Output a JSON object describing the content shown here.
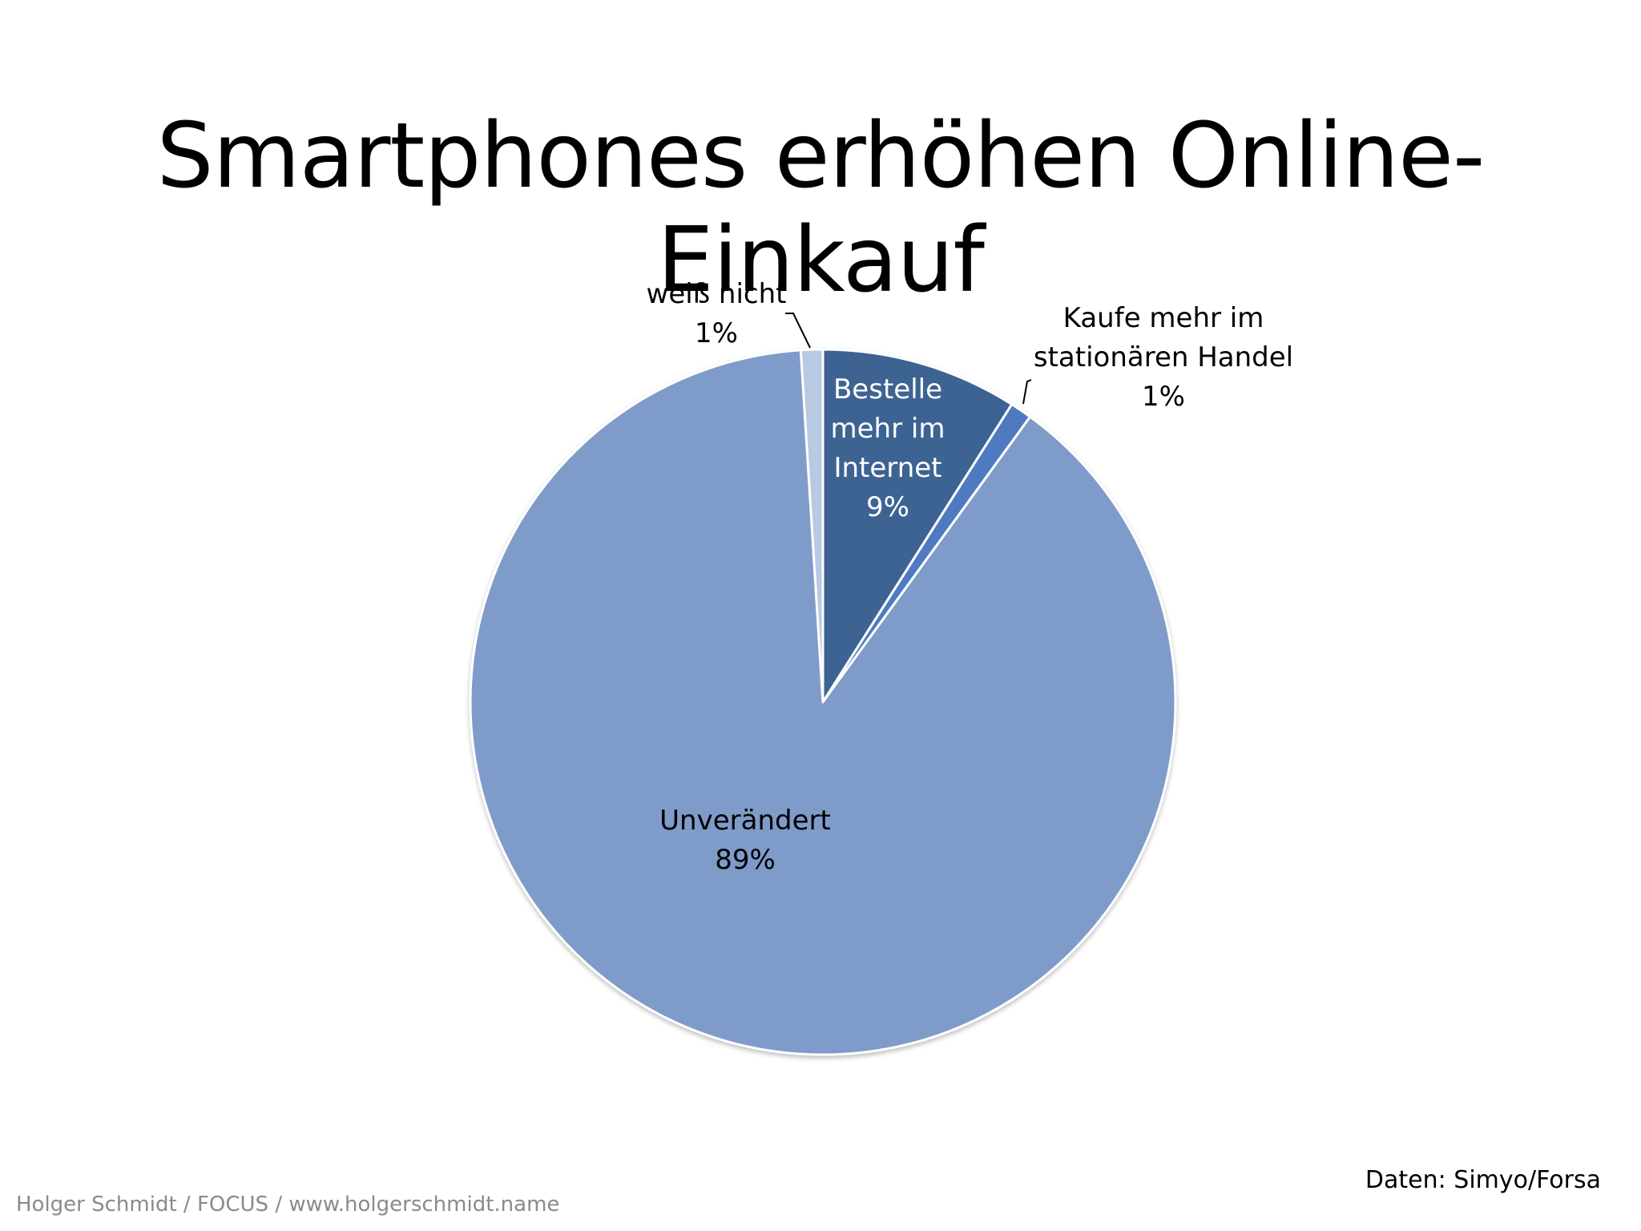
{
  "title": "Smartphones erhöhen Online-Einkauf",
  "source_note": "Daten: Simyo/Forsa",
  "footer_credit": "Holger Schmidt / FOCUS / www.holgerschmidt.name",
  "chart_data": {
    "type": "pie",
    "title": "Smartphones erhöhen Online-Einkauf",
    "start_angle_deg": 0,
    "direction": "clockwise",
    "slices": [
      {
        "label": "Bestelle mehr im Internet",
        "label_lines": [
          "Bestelle",
          "mehr im",
          "Internet"
        ],
        "percent_text": "9%",
        "value": 9,
        "color": "#3e6393",
        "label_color": "#ffffff",
        "label_position": "inside"
      },
      {
        "label": "Kaufe mehr im stationären Handel",
        "label_lines": [
          "Kaufe mehr im",
          "stationären Handel"
        ],
        "percent_text": "1%",
        "value": 1,
        "color": "#4f7ac0",
        "label_color": "#000000",
        "label_position": "outside"
      },
      {
        "label": "Unverändert",
        "label_lines": [
          "Unverändert"
        ],
        "percent_text": "89%",
        "value": 89,
        "color": "#7f9bc9",
        "label_color": "#000000",
        "label_position": "inside"
      },
      {
        "label": "weiß nicht",
        "label_lines": [
          "weiß nicht"
        ],
        "percent_text": "1%",
        "value": 1,
        "color": "#b8c9e2",
        "label_color": "#000000",
        "label_position": "outside"
      }
    ]
  }
}
